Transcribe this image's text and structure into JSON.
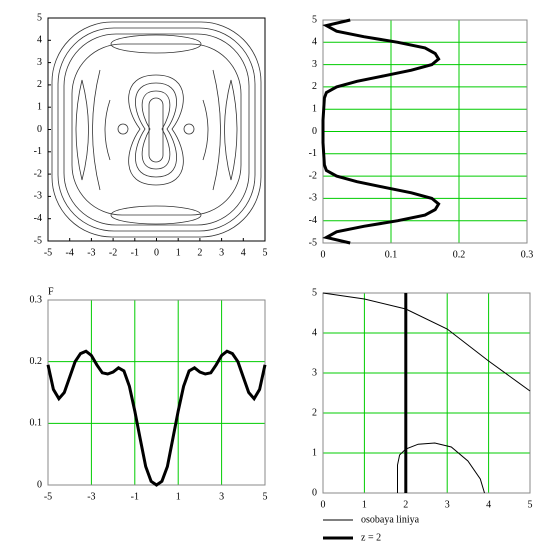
{
  "chart_data": [
    {
      "type": "contour",
      "xlim": [
        -5,
        5
      ],
      "ylim": [
        -5,
        5
      ],
      "xticks": [
        -5,
        -4,
        -3,
        -2,
        -1,
        0,
        1,
        2,
        3,
        4,
        5
      ],
      "yticks": [
        -5,
        -4,
        -3,
        -2,
        -1,
        0,
        1,
        2,
        3,
        4,
        5
      ],
      "grid": false
    },
    {
      "type": "profile",
      "xlim": [
        0,
        0.3
      ],
      "ylim": [
        -5,
        5
      ],
      "xticks": [
        0,
        0.1,
        0.2,
        0.3
      ],
      "yticks": [
        -5,
        -4,
        -3,
        -2,
        -1,
        0,
        1,
        2,
        3,
        4,
        5
      ],
      "grid": true,
      "grid_color": "#00cc00",
      "color": "#000000",
      "line_width": 3,
      "y": [
        -5,
        -4.75,
        -4.5,
        -4.25,
        -4,
        -3.75,
        -3.5,
        -3.25,
        -3,
        -2.75,
        -2.5,
        -2.25,
        -2,
        -1.75,
        -1.5,
        -1,
        -0.5,
        0,
        0.5,
        1,
        1.5,
        1.75,
        2,
        2.25,
        2.5,
        2.75,
        3,
        3.25,
        3.5,
        3.75,
        4,
        4.25,
        4.5,
        4.75,
        5
      ],
      "values": [
        0.04,
        0.005,
        0.02,
        0.06,
        0.11,
        0.15,
        0.165,
        0.17,
        0.16,
        0.13,
        0.09,
        0.05,
        0.02,
        0.005,
        0.002,
        0.001,
        0,
        0,
        0,
        0.001,
        0.002,
        0.005,
        0.02,
        0.05,
        0.09,
        0.13,
        0.16,
        0.17,
        0.165,
        0.15,
        0.11,
        0.06,
        0.02,
        0.005,
        0.04
      ]
    },
    {
      "type": "line",
      "y_label": "F",
      "xlim": [
        -5,
        5
      ],
      "ylim": [
        0,
        0.3
      ],
      "xticks": [
        -5,
        -3,
        -1,
        1,
        3,
        5
      ],
      "yticks": [
        0,
        0.1,
        0.2,
        0.3
      ],
      "grid": true,
      "grid_color": "#00cc00",
      "series": [
        {
          "color": "#000000",
          "line_width": 3,
          "x": [
            -5,
            -4.75,
            -4.5,
            -4.25,
            -4,
            -3.75,
            -3.5,
            -3.25,
            -3,
            -2.75,
            -2.5,
            -2.25,
            -2,
            -1.75,
            -1.5,
            -1.25,
            -1,
            -0.75,
            -0.5,
            -0.25,
            0,
            0.25,
            0.5,
            0.75,
            1,
            1.25,
            1.5,
            1.75,
            2,
            2.25,
            2.5,
            2.75,
            3,
            3.25,
            3.5,
            3.75,
            4,
            4.25,
            4.5,
            4.75,
            5
          ],
          "values": [
            0.195,
            0.155,
            0.14,
            0.15,
            0.175,
            0.2,
            0.213,
            0.217,
            0.21,
            0.195,
            0.182,
            0.18,
            0.183,
            0.19,
            0.185,
            0.16,
            0.12,
            0.075,
            0.03,
            0.006,
            0,
            0.006,
            0.03,
            0.075,
            0.12,
            0.16,
            0.185,
            0.19,
            0.183,
            0.18,
            0.182,
            0.195,
            0.21,
            0.217,
            0.213,
            0.2,
            0.175,
            0.15,
            0.14,
            0.155,
            0.195
          ]
        }
      ]
    },
    {
      "type": "line",
      "xlim": [
        0,
        5
      ],
      "ylim": [
        0,
        5
      ],
      "xticks": [
        0,
        1,
        2,
        3,
        4,
        5
      ],
      "yticks": [
        0,
        1,
        2,
        3,
        4,
        5
      ],
      "grid": true,
      "grid_color": "#00cc00",
      "series": [
        {
          "name": "osobaya liniya",
          "color": "#000000",
          "line_width": 1,
          "x": [
            0,
            1,
            2,
            3,
            4,
            5,
            null,
            1.8,
            1.8,
            1.85,
            2,
            2.3,
            2.7,
            3.1,
            3.5,
            3.8,
            3.9
          ],
          "values": [
            5,
            4.85,
            4.6,
            4.1,
            3.3,
            2.55,
            null,
            0,
            0.7,
            0.95,
            1.1,
            1.22,
            1.25,
            1.15,
            0.8,
            0.35,
            0
          ]
        },
        {
          "name": "z = 2",
          "color": "#000000",
          "line_width": 3,
          "x": [
            2,
            2
          ],
          "values": [
            0,
            5
          ]
        }
      ]
    }
  ]
}
